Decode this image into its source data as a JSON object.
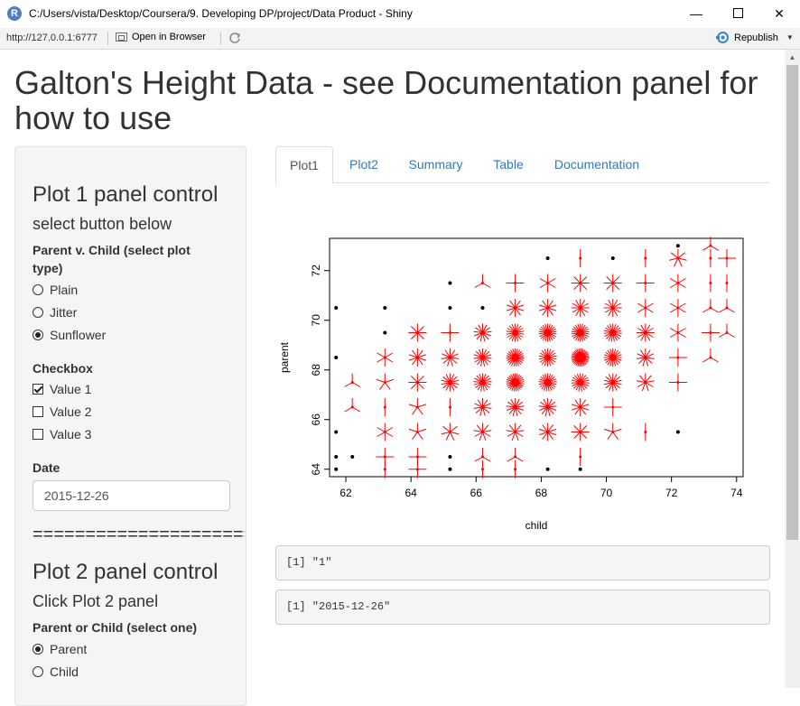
{
  "window": {
    "title": "C:/Users/vista/Desktop/Coursera/9. Developing DP/project/Data Product - Shiny",
    "app_icon_letter": "R",
    "min": "—",
    "close": "✕"
  },
  "toolbar": {
    "url": "http://127.0.0.1:6777",
    "open_browser": "Open in Browser",
    "republish": "Republish"
  },
  "page": {
    "title": "Galton's Height Data - see Documentation panel for how to use"
  },
  "sidebar": {
    "plot1_heading": "Plot 1 panel control",
    "plot1_sub": "select button below",
    "plot_type_label": "Parent v. Child (select plot type)",
    "plot_type_options": [
      {
        "label": "Plain",
        "selected": false
      },
      {
        "label": "Jitter",
        "selected": false
      },
      {
        "label": "Sunflower",
        "selected": true
      }
    ],
    "checkbox_label": "Checkbox",
    "checkbox_options": [
      {
        "label": "Value 1",
        "checked": true
      },
      {
        "label": "Value 2",
        "checked": false
      },
      {
        "label": "Value 3",
        "checked": false
      }
    ],
    "date_label": "Date",
    "date_value": "2015-12-26",
    "divider": "=======================",
    "plot2_heading": "Plot 2 panel control",
    "plot2_sub": "Click Plot 2 panel",
    "parent_child_label": "Parent or Child (select one)",
    "parent_child_options": [
      {
        "label": "Parent",
        "selected": true
      },
      {
        "label": "Child",
        "selected": false
      }
    ]
  },
  "tabs": [
    "Plot1",
    "Plot2",
    "Summary",
    "Table",
    "Documentation"
  ],
  "active_tab": "Plot1",
  "outputs": {
    "checkbox_value": "[1] \"1\"",
    "date_value": "[1] \"2015-12-26\""
  },
  "chart_data": {
    "type": "scatter",
    "subtype": "sunflower",
    "xlabel": "child",
    "ylabel": "parent",
    "xlim": [
      61.5,
      74.2
    ],
    "ylim": [
      63.7,
      73.3
    ],
    "xticks": [
      "62",
      "64",
      "66",
      "68",
      "70",
      "72",
      "74"
    ],
    "yticks": [
      "64",
      "66",
      "68",
      "70",
      "72"
    ],
    "colors": {
      "dot": "#000000",
      "petal": "#ff0000"
    },
    "points": [
      {
        "x": 61.7,
        "y": 64.0,
        "n": 1
      },
      {
        "x": 61.7,
        "y": 64.5,
        "n": 1
      },
      {
        "x": 61.7,
        "y": 65.5,
        "n": 1
      },
      {
        "x": 61.7,
        "y": 68.5,
        "n": 1
      },
      {
        "x": 61.7,
        "y": 70.5,
        "n": 1
      },
      {
        "x": 62.2,
        "y": 64.5,
        "n": 1
      },
      {
        "x": 62.2,
        "y": 66.5,
        "n": 3
      },
      {
        "x": 62.2,
        "y": 67.5,
        "n": 3
      },
      {
        "x": 63.2,
        "y": 64.0,
        "n": 2
      },
      {
        "x": 63.2,
        "y": 64.5,
        "n": 4
      },
      {
        "x": 63.2,
        "y": 65.5,
        "n": 6
      },
      {
        "x": 63.2,
        "y": 66.5,
        "n": 2
      },
      {
        "x": 63.2,
        "y": 67.5,
        "n": 5
      },
      {
        "x": 63.2,
        "y": 68.5,
        "n": 6
      },
      {
        "x": 63.2,
        "y": 69.5,
        "n": 1
      },
      {
        "x": 63.2,
        "y": 70.5,
        "n": 1
      },
      {
        "x": 64.2,
        "y": 64.0,
        "n": 4
      },
      {
        "x": 64.2,
        "y": 64.5,
        "n": 4
      },
      {
        "x": 64.2,
        "y": 65.5,
        "n": 5
      },
      {
        "x": 64.2,
        "y": 66.5,
        "n": 5
      },
      {
        "x": 64.2,
        "y": 67.5,
        "n": 8
      },
      {
        "x": 64.2,
        "y": 68.5,
        "n": 10
      },
      {
        "x": 64.2,
        "y": 69.5,
        "n": 8
      },
      {
        "x": 65.2,
        "y": 64.0,
        "n": 1
      },
      {
        "x": 65.2,
        "y": 64.5,
        "n": 1
      },
      {
        "x": 65.2,
        "y": 65.5,
        "n": 7
      },
      {
        "x": 65.2,
        "y": 66.5,
        "n": 2
      },
      {
        "x": 65.2,
        "y": 67.5,
        "n": 14
      },
      {
        "x": 65.2,
        "y": 68.5,
        "n": 11
      },
      {
        "x": 65.2,
        "y": 69.5,
        "n": 4
      },
      {
        "x": 65.2,
        "y": 70.5,
        "n": 1
      },
      {
        "x": 65.2,
        "y": 71.5,
        "n": 1
      },
      {
        "x": 66.2,
        "y": 64.0,
        "n": 2
      },
      {
        "x": 66.2,
        "y": 64.5,
        "n": 3
      },
      {
        "x": 66.2,
        "y": 65.5,
        "n": 9
      },
      {
        "x": 66.2,
        "y": 66.5,
        "n": 11
      },
      {
        "x": 66.2,
        "y": 67.5,
        "n": 17
      },
      {
        "x": 66.2,
        "y": 68.5,
        "n": 15
      },
      {
        "x": 66.2,
        "y": 69.5,
        "n": 13
      },
      {
        "x": 66.2,
        "y": 70.5,
        "n": 1
      },
      {
        "x": 66.2,
        "y": 71.5,
        "n": 3
      },
      {
        "x": 67.2,
        "y": 64.0,
        "n": 2
      },
      {
        "x": 67.2,
        "y": 64.5,
        "n": 3
      },
      {
        "x": 67.2,
        "y": 65.5,
        "n": 9
      },
      {
        "x": 67.2,
        "y": 66.5,
        "n": 13
      },
      {
        "x": 67.2,
        "y": 67.5,
        "n": 25
      },
      {
        "x": 67.2,
        "y": 68.5,
        "n": 23
      },
      {
        "x": 67.2,
        "y": 69.5,
        "n": 18
      },
      {
        "x": 67.2,
        "y": 70.5,
        "n": 10
      },
      {
        "x": 67.2,
        "y": 71.5,
        "n": 4
      },
      {
        "x": 68.2,
        "y": 64.0,
        "n": 1
      },
      {
        "x": 68.2,
        "y": 65.5,
        "n": 10
      },
      {
        "x": 68.2,
        "y": 66.5,
        "n": 13
      },
      {
        "x": 68.2,
        "y": 67.5,
        "n": 21
      },
      {
        "x": 68.2,
        "y": 68.5,
        "n": 18
      },
      {
        "x": 68.2,
        "y": 69.5,
        "n": 22
      },
      {
        "x": 68.2,
        "y": 70.5,
        "n": 10
      },
      {
        "x": 68.2,
        "y": 71.5,
        "n": 6
      },
      {
        "x": 68.2,
        "y": 72.5,
        "n": 1
      },
      {
        "x": 69.2,
        "y": 64.0,
        "n": 1
      },
      {
        "x": 69.2,
        "y": 64.5,
        "n": 2
      },
      {
        "x": 69.2,
        "y": 65.5,
        "n": 8
      },
      {
        "x": 69.2,
        "y": 66.5,
        "n": 10
      },
      {
        "x": 69.2,
        "y": 67.5,
        "n": 19
      },
      {
        "x": 69.2,
        "y": 68.5,
        "n": 33
      },
      {
        "x": 69.2,
        "y": 69.5,
        "n": 22
      },
      {
        "x": 69.2,
        "y": 70.5,
        "n": 12
      },
      {
        "x": 69.2,
        "y": 71.5,
        "n": 8
      },
      {
        "x": 69.2,
        "y": 72.5,
        "n": 2
      },
      {
        "x": 70.2,
        "y": 65.5,
        "n": 5
      },
      {
        "x": 70.2,
        "y": 66.5,
        "n": 4
      },
      {
        "x": 70.2,
        "y": 67.5,
        "n": 14
      },
      {
        "x": 70.2,
        "y": 68.5,
        "n": 20
      },
      {
        "x": 70.2,
        "y": 69.5,
        "n": 19
      },
      {
        "x": 70.2,
        "y": 70.5,
        "n": 12
      },
      {
        "x": 70.2,
        "y": 71.5,
        "n": 8
      },
      {
        "x": 70.2,
        "y": 72.5,
        "n": 1
      },
      {
        "x": 71.2,
        "y": 65.5,
        "n": 2
      },
      {
        "x": 71.2,
        "y": 67.5,
        "n": 9
      },
      {
        "x": 71.2,
        "y": 68.5,
        "n": 11
      },
      {
        "x": 71.2,
        "y": 69.5,
        "n": 12
      },
      {
        "x": 71.2,
        "y": 70.5,
        "n": 6
      },
      {
        "x": 71.2,
        "y": 71.5,
        "n": 4
      },
      {
        "x": 71.2,
        "y": 72.5,
        "n": 2
      },
      {
        "x": 72.2,
        "y": 65.5,
        "n": 1
      },
      {
        "x": 72.2,
        "y": 67.5,
        "n": 4
      },
      {
        "x": 72.2,
        "y": 68.5,
        "n": 4
      },
      {
        "x": 72.2,
        "y": 69.5,
        "n": 6
      },
      {
        "x": 72.2,
        "y": 70.5,
        "n": 6
      },
      {
        "x": 72.2,
        "y": 71.5,
        "n": 6
      },
      {
        "x": 72.2,
        "y": 72.5,
        "n": 7
      },
      {
        "x": 72.2,
        "y": 73.0,
        "n": 1
      },
      {
        "x": 73.2,
        "y": 68.5,
        "n": 3
      },
      {
        "x": 73.2,
        "y": 69.5,
        "n": 4
      },
      {
        "x": 73.2,
        "y": 70.5,
        "n": 3
      },
      {
        "x": 73.2,
        "y": 71.5,
        "n": 2
      },
      {
        "x": 73.2,
        "y": 72.5,
        "n": 2
      },
      {
        "x": 73.2,
        "y": 73.0,
        "n": 3
      },
      {
        "x": 73.7,
        "y": 69.5,
        "n": 3
      },
      {
        "x": 73.7,
        "y": 70.5,
        "n": 3
      },
      {
        "x": 73.7,
        "y": 71.5,
        "n": 2
      },
      {
        "x": 73.7,
        "y": 72.5,
        "n": 4
      }
    ]
  }
}
